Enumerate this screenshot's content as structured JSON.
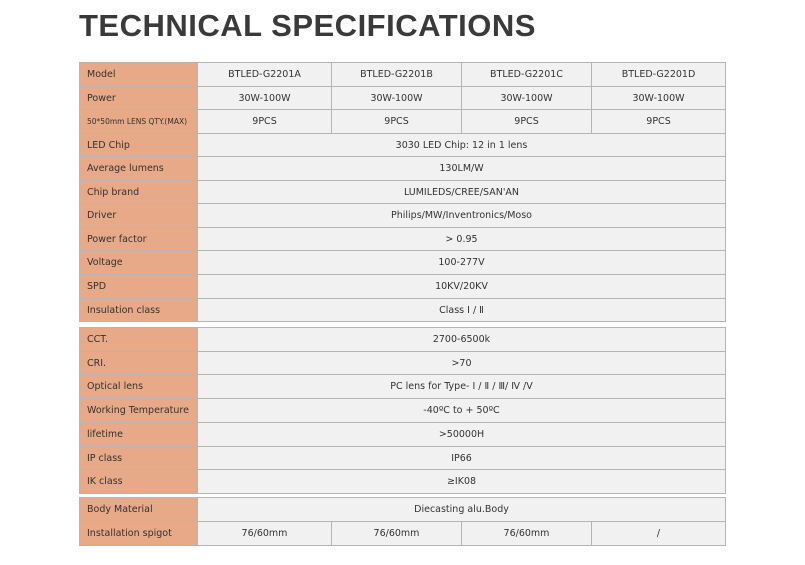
{
  "title": "TECHNICAL SPECIFICATIONS",
  "tables": [
    {
      "rows": [
        {
          "label": "Model",
          "values": [
            "BTLED-G2201A",
            "BTLED-G2201B",
            "BTLED-G2201C",
            "BTLED-G2201D"
          ]
        },
        {
          "label": "Power",
          "values": [
            "30W-100W",
            "30W-100W",
            "30W-100W",
            "30W-100W"
          ]
        },
        {
          "label": "50*50mm LENS QTY.(MAX)",
          "values": [
            "9PCS",
            "9PCS",
            "9PCS",
            "9PCS"
          ]
        },
        {
          "label": "LED Chip",
          "values": [
            "3030 LED Chip: 12 in 1 lens"
          ]
        },
        {
          "label": "Average lumens",
          "values": [
            "130LM/W"
          ]
        },
        {
          "label": "Chip brand",
          "values": [
            "LUMILEDS/CREE/SAN'AN"
          ]
        },
        {
          "label": "Driver",
          "values": [
            "Philips/MW/Inventronics/Moso"
          ]
        },
        {
          "label": "Power factor",
          "values": [
            "> 0.95"
          ]
        },
        {
          "label": "Voltage",
          "values": [
            "100-277V"
          ]
        },
        {
          "label": "SPD",
          "values": [
            "10KV/20KV"
          ]
        },
        {
          "label": "Insulation class",
          "values": [
            "Class Ⅰ / Ⅱ"
          ]
        }
      ]
    },
    {
      "rows": [
        {
          "label": "CCT.",
          "values": [
            "2700-6500k"
          ]
        },
        {
          "label": "CRI.",
          "values": [
            ">70"
          ]
        },
        {
          "label": "Optical lens",
          "values": [
            "PC lens for Type- Ⅰ / Ⅱ / Ⅲ/ Ⅳ /Ⅴ"
          ]
        },
        {
          "label": "Working Temperature",
          "values": [
            "-40ºC to + 50ºC"
          ]
        },
        {
          "label": "lifetime",
          "values": [
            ">50000H"
          ]
        },
        {
          "label": "IP class",
          "values": [
            "IP66"
          ]
        },
        {
          "label": "IK class",
          "values": [
            "≥IK08"
          ]
        }
      ]
    },
    {
      "rows": [
        {
          "label": "Body Material",
          "values": [
            "Diecasting alu.Body"
          ]
        },
        {
          "label": "Installation spigot",
          "values": [
            "76/60mm",
            "76/60mm",
            "76/60mm",
            "/"
          ]
        }
      ]
    }
  ]
}
